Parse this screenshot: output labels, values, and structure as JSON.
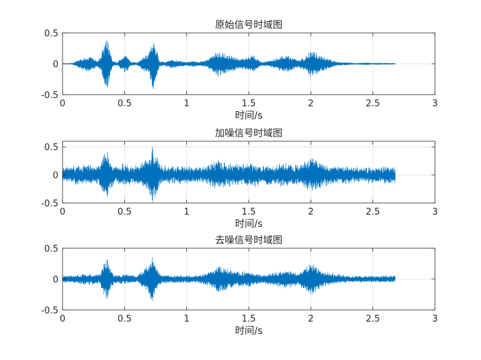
{
  "chart_data": [
    {
      "type": "line",
      "title": "原始信号时域图",
      "xlabel": "时间/s",
      "ylabel": "",
      "xlim": [
        0,
        3
      ],
      "ylim": [
        -0.5,
        0.5
      ],
      "xticks": [
        "0",
        "0.5",
        "1",
        "1.5",
        "2",
        "2.5",
        "3"
      ],
      "yticks": [
        "-0.5",
        "0",
        "0.5"
      ],
      "xtick_values": [
        0,
        0.5,
        1,
        1.5,
        2,
        2.5,
        3
      ],
      "ytick_values": [
        -0.5,
        0,
        0.5
      ],
      "grid": true,
      "line_color": "#0072BD",
      "series": [
        {
          "duration_s": 2.68,
          "envelope": [
            [
              0.0,
              0.005
            ],
            [
              0.08,
              0.01
            ],
            [
              0.12,
              0.05
            ],
            [
              0.16,
              0.1
            ],
            [
              0.2,
              0.12
            ],
            [
              0.24,
              0.1
            ],
            [
              0.28,
              0.05
            ],
            [
              0.31,
              0.12
            ],
            [
              0.34,
              0.38
            ],
            [
              0.36,
              0.4
            ],
            [
              0.38,
              0.25
            ],
            [
              0.4,
              0.05
            ],
            [
              0.44,
              0.02
            ],
            [
              0.47,
              0.08
            ],
            [
              0.5,
              0.15
            ],
            [
              0.52,
              0.12
            ],
            [
              0.55,
              0.03
            ],
            [
              0.6,
              0.02
            ],
            [
              0.7,
              0.2
            ],
            [
              0.73,
              0.48
            ],
            [
              0.75,
              0.3
            ],
            [
              0.78,
              0.05
            ],
            [
              0.82,
              0.03
            ],
            [
              0.88,
              0.07
            ],
            [
              0.95,
              0.05
            ],
            [
              1.0,
              0.03
            ],
            [
              1.05,
              0.05
            ],
            [
              1.1,
              0.03
            ],
            [
              1.15,
              0.05
            ],
            [
              1.2,
              0.12
            ],
            [
              1.25,
              0.2
            ],
            [
              1.3,
              0.18
            ],
            [
              1.35,
              0.14
            ],
            [
              1.4,
              0.1
            ],
            [
              1.45,
              0.08
            ],
            [
              1.5,
              0.12
            ],
            [
              1.53,
              0.14
            ],
            [
              1.56,
              0.1
            ],
            [
              1.6,
              0.03
            ],
            [
              1.65,
              0.04
            ],
            [
              1.7,
              0.08
            ],
            [
              1.75,
              0.12
            ],
            [
              1.8,
              0.14
            ],
            [
              1.85,
              0.1
            ],
            [
              1.9,
              0.06
            ],
            [
              1.95,
              0.1
            ],
            [
              2.0,
              0.22
            ],
            [
              2.04,
              0.18
            ],
            [
              2.1,
              0.12
            ],
            [
              2.16,
              0.07
            ],
            [
              2.2,
              0.04
            ],
            [
              2.26,
              0.02
            ],
            [
              2.3,
              0.02
            ],
            [
              2.36,
              0.01
            ],
            [
              2.45,
              0.02
            ],
            [
              2.5,
              0.01
            ],
            [
              2.55,
              0.015
            ],
            [
              2.6,
              0.01
            ],
            [
              2.68,
              0.01
            ]
          ],
          "noise_level": 0
        }
      ]
    },
    {
      "type": "line",
      "title": "加噪信号时域图",
      "xlabel": "时间/s",
      "ylabel": "",
      "xlim": [
        0,
        3
      ],
      "ylim": [
        -0.5,
        0.6
      ],
      "xticks": [
        "0",
        "0.5",
        "1",
        "1.5",
        "2",
        "2.5",
        "3"
      ],
      "yticks": [
        "-0.5",
        "0",
        "0.5"
      ],
      "xtick_values": [
        0,
        0.5,
        1,
        1.5,
        2,
        2.5,
        3
      ],
      "ytick_values": [
        -0.5,
        0,
        0.5
      ],
      "grid": true,
      "line_color": "#0072BD",
      "series": [
        {
          "duration_s": 2.68,
          "envelope": [
            [
              0.0,
              0.12
            ],
            [
              0.1,
              0.14
            ],
            [
              0.2,
              0.18
            ],
            [
              0.3,
              0.15
            ],
            [
              0.34,
              0.38
            ],
            [
              0.36,
              0.45
            ],
            [
              0.38,
              0.28
            ],
            [
              0.42,
              0.14
            ],
            [
              0.5,
              0.18
            ],
            [
              0.6,
              0.15
            ],
            [
              0.7,
              0.3
            ],
            [
              0.72,
              0.55
            ],
            [
              0.75,
              0.35
            ],
            [
              0.8,
              0.15
            ],
            [
              0.9,
              0.14
            ],
            [
              1.0,
              0.13
            ],
            [
              1.1,
              0.14
            ],
            [
              1.2,
              0.18
            ],
            [
              1.25,
              0.25
            ],
            [
              1.3,
              0.22
            ],
            [
              1.4,
              0.17
            ],
            [
              1.5,
              0.18
            ],
            [
              1.55,
              0.18
            ],
            [
              1.6,
              0.14
            ],
            [
              1.7,
              0.16
            ],
            [
              1.8,
              0.2
            ],
            [
              1.9,
              0.15
            ],
            [
              2.0,
              0.3
            ],
            [
              2.05,
              0.25
            ],
            [
              2.1,
              0.18
            ],
            [
              2.2,
              0.14
            ],
            [
              2.3,
              0.13
            ],
            [
              2.4,
              0.12
            ],
            [
              2.5,
              0.13
            ],
            [
              2.6,
              0.14
            ],
            [
              2.68,
              0.13
            ]
          ],
          "noise_level": 0.11
        }
      ]
    },
    {
      "type": "line",
      "title": "去噪信号时域图",
      "xlabel": "时间/s",
      "ylabel": "",
      "xlim": [
        0,
        3
      ],
      "ylim": [
        -0.5,
        0.5
      ],
      "xticks": [
        "0",
        "0.5",
        "1",
        "1.5",
        "2",
        "2.5",
        "3"
      ],
      "yticks": [
        "-0.5",
        "0",
        "0.5"
      ],
      "xtick_values": [
        0,
        0.5,
        1,
        1.5,
        2,
        2.5,
        3
      ],
      "ytick_values": [
        -0.5,
        0,
        0.5
      ],
      "grid": true,
      "line_color": "#0072BD",
      "series": [
        {
          "duration_s": 2.68,
          "envelope": [
            [
              0.0,
              0.05
            ],
            [
              0.1,
              0.06
            ],
            [
              0.2,
              0.09
            ],
            [
              0.3,
              0.07
            ],
            [
              0.34,
              0.3
            ],
            [
              0.36,
              0.35
            ],
            [
              0.38,
              0.2
            ],
            [
              0.42,
              0.06
            ],
            [
              0.5,
              0.08
            ],
            [
              0.6,
              0.05
            ],
            [
              0.7,
              0.25
            ],
            [
              0.72,
              0.38
            ],
            [
              0.75,
              0.2
            ],
            [
              0.8,
              0.06
            ],
            [
              0.9,
              0.06
            ],
            [
              1.0,
              0.05
            ],
            [
              1.1,
              0.06
            ],
            [
              1.2,
              0.12
            ],
            [
              1.25,
              0.22
            ],
            [
              1.3,
              0.18
            ],
            [
              1.4,
              0.12
            ],
            [
              1.5,
              0.12
            ],
            [
              1.55,
              0.1
            ],
            [
              1.6,
              0.06
            ],
            [
              1.7,
              0.1
            ],
            [
              1.8,
              0.14
            ],
            [
              1.9,
              0.1
            ],
            [
              2.0,
              0.25
            ],
            [
              2.05,
              0.2
            ],
            [
              2.1,
              0.12
            ],
            [
              2.2,
              0.08
            ],
            [
              2.3,
              0.05
            ],
            [
              2.4,
              0.05
            ],
            [
              2.5,
              0.05
            ],
            [
              2.6,
              0.05
            ],
            [
              2.68,
              0.05
            ]
          ],
          "noise_level": 0.03
        }
      ]
    }
  ]
}
